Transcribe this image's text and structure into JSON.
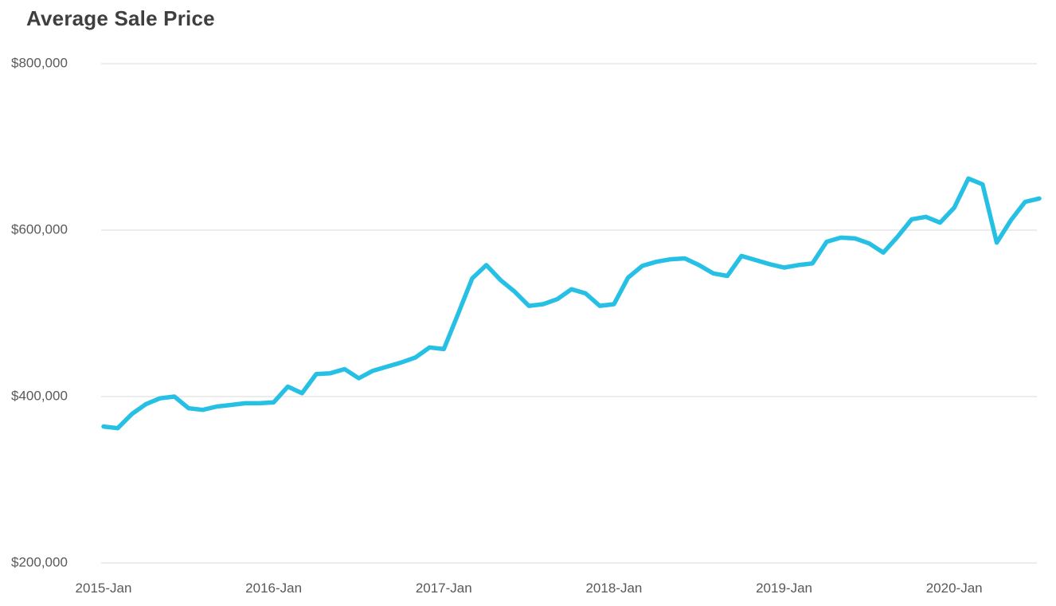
{
  "chart_data": {
    "type": "line",
    "title": "Average Sale Price",
    "xlabel": "",
    "ylabel": "",
    "ylim": [
      200000,
      800000
    ],
    "grid": "horizontal",
    "legend": "none",
    "line_color": "#27c0e5",
    "grid_color": "#d9d9d9",
    "title_color": "#3f3f3f",
    "axis_text_color": "#595959",
    "y_ticks": [
      {
        "label": "$200,000",
        "value": 200000
      },
      {
        "label": "$400,000",
        "value": 400000
      },
      {
        "label": "$600,000",
        "value": 600000
      },
      {
        "label": "$800,000",
        "value": 800000
      }
    ],
    "x_ticks": [
      {
        "label": "2015-Jan",
        "month_index": 0
      },
      {
        "label": "2016-Jan",
        "month_index": 12
      },
      {
        "label": "2017-Jan",
        "month_index": 24
      },
      {
        "label": "2018-Jan",
        "month_index": 36
      },
      {
        "label": "2019-Jan",
        "month_index": 48
      },
      {
        "label": "2020-Jan",
        "month_index": 60
      }
    ],
    "series": [
      {
        "name": "Average Sale Price",
        "x": [
          "2015-Jan",
          "2015-Feb",
          "2015-Mar",
          "2015-Apr",
          "2015-May",
          "2015-Jun",
          "2015-Jul",
          "2015-Aug",
          "2015-Sep",
          "2015-Oct",
          "2015-Nov",
          "2015-Dec",
          "2016-Jan",
          "2016-Feb",
          "2016-Mar",
          "2016-Apr",
          "2016-May",
          "2016-Jun",
          "2016-Jul",
          "2016-Aug",
          "2016-Sep",
          "2016-Oct",
          "2016-Nov",
          "2016-Dec",
          "2017-Jan",
          "2017-Feb",
          "2017-Mar",
          "2017-Apr",
          "2017-May",
          "2017-Jun",
          "2017-Jul",
          "2017-Aug",
          "2017-Sep",
          "2017-Oct",
          "2017-Nov",
          "2017-Dec",
          "2018-Jan",
          "2018-Feb",
          "2018-Mar",
          "2018-Apr",
          "2018-May",
          "2018-Jun",
          "2018-Jul",
          "2018-Aug",
          "2018-Sep",
          "2018-Oct",
          "2018-Nov",
          "2018-Dec",
          "2019-Jan",
          "2019-Feb",
          "2019-Mar",
          "2019-Apr",
          "2019-May",
          "2019-Jun",
          "2019-Jul",
          "2019-Aug",
          "2019-Sep",
          "2019-Oct",
          "2019-Nov",
          "2019-Dec",
          "2020-Jan",
          "2020-Feb",
          "2020-Mar",
          "2020-Apr",
          "2020-May",
          "2020-Jun",
          "2020-Jul"
        ],
        "values": [
          364000,
          362000,
          379000,
          391000,
          398000,
          400000,
          386000,
          384000,
          388000,
          390000,
          392000,
          392000,
          393000,
          412000,
          404000,
          427000,
          428000,
          433000,
          422000,
          431000,
          436000,
          441000,
          447000,
          459000,
          457000,
          499000,
          542000,
          558000,
          540000,
          526000,
          509000,
          511000,
          517000,
          529000,
          524000,
          509000,
          511000,
          543000,
          557000,
          562000,
          565000,
          566000,
          558000,
          548000,
          545000,
          569000,
          564000,
          559000,
          555000,
          558000,
          560000,
          586000,
          591000,
          590000,
          584000,
          573000,
          592000,
          613000,
          616000,
          609000,
          627000,
          662000,
          655000,
          585000,
          612000,
          634000,
          638000
        ]
      }
    ]
  }
}
